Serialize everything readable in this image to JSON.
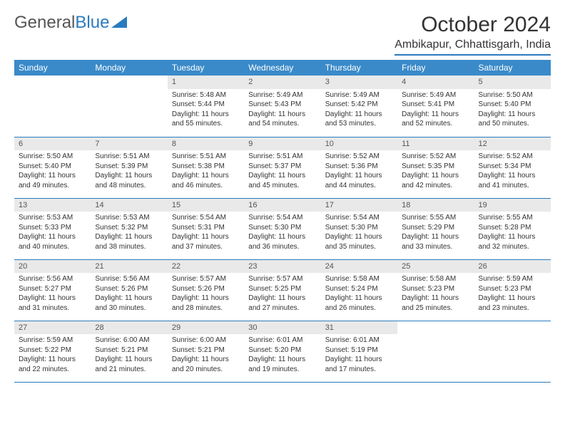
{
  "brand": {
    "part1": "General",
    "part2": "Blue"
  },
  "title": "October 2024",
  "location": "Ambikapur, Chhattisgarh, India",
  "colors": {
    "header_bg": "#3a8ac9",
    "header_text": "#ffffff",
    "daynum_bg": "#e9e9e9",
    "rule": "#2a7bbf",
    "text": "#333333"
  },
  "daysOfWeek": [
    "Sunday",
    "Monday",
    "Tuesday",
    "Wednesday",
    "Thursday",
    "Friday",
    "Saturday"
  ],
  "weeks": [
    [
      {
        "n": "",
        "sr": "",
        "ss": "",
        "dl": "",
        "empty": true
      },
      {
        "n": "",
        "sr": "",
        "ss": "",
        "dl": "",
        "empty": true
      },
      {
        "n": "1",
        "sr": "Sunrise: 5:48 AM",
        "ss": "Sunset: 5:44 PM",
        "dl": "Daylight: 11 hours and 55 minutes."
      },
      {
        "n": "2",
        "sr": "Sunrise: 5:49 AM",
        "ss": "Sunset: 5:43 PM",
        "dl": "Daylight: 11 hours and 54 minutes."
      },
      {
        "n": "3",
        "sr": "Sunrise: 5:49 AM",
        "ss": "Sunset: 5:42 PM",
        "dl": "Daylight: 11 hours and 53 minutes."
      },
      {
        "n": "4",
        "sr": "Sunrise: 5:49 AM",
        "ss": "Sunset: 5:41 PM",
        "dl": "Daylight: 11 hours and 52 minutes."
      },
      {
        "n": "5",
        "sr": "Sunrise: 5:50 AM",
        "ss": "Sunset: 5:40 PM",
        "dl": "Daylight: 11 hours and 50 minutes."
      }
    ],
    [
      {
        "n": "6",
        "sr": "Sunrise: 5:50 AM",
        "ss": "Sunset: 5:40 PM",
        "dl": "Daylight: 11 hours and 49 minutes."
      },
      {
        "n": "7",
        "sr": "Sunrise: 5:51 AM",
        "ss": "Sunset: 5:39 PM",
        "dl": "Daylight: 11 hours and 48 minutes."
      },
      {
        "n": "8",
        "sr": "Sunrise: 5:51 AM",
        "ss": "Sunset: 5:38 PM",
        "dl": "Daylight: 11 hours and 46 minutes."
      },
      {
        "n": "9",
        "sr": "Sunrise: 5:51 AM",
        "ss": "Sunset: 5:37 PM",
        "dl": "Daylight: 11 hours and 45 minutes."
      },
      {
        "n": "10",
        "sr": "Sunrise: 5:52 AM",
        "ss": "Sunset: 5:36 PM",
        "dl": "Daylight: 11 hours and 44 minutes."
      },
      {
        "n": "11",
        "sr": "Sunrise: 5:52 AM",
        "ss": "Sunset: 5:35 PM",
        "dl": "Daylight: 11 hours and 42 minutes."
      },
      {
        "n": "12",
        "sr": "Sunrise: 5:52 AM",
        "ss": "Sunset: 5:34 PM",
        "dl": "Daylight: 11 hours and 41 minutes."
      }
    ],
    [
      {
        "n": "13",
        "sr": "Sunrise: 5:53 AM",
        "ss": "Sunset: 5:33 PM",
        "dl": "Daylight: 11 hours and 40 minutes."
      },
      {
        "n": "14",
        "sr": "Sunrise: 5:53 AM",
        "ss": "Sunset: 5:32 PM",
        "dl": "Daylight: 11 hours and 38 minutes."
      },
      {
        "n": "15",
        "sr": "Sunrise: 5:54 AM",
        "ss": "Sunset: 5:31 PM",
        "dl": "Daylight: 11 hours and 37 minutes."
      },
      {
        "n": "16",
        "sr": "Sunrise: 5:54 AM",
        "ss": "Sunset: 5:30 PM",
        "dl": "Daylight: 11 hours and 36 minutes."
      },
      {
        "n": "17",
        "sr": "Sunrise: 5:54 AM",
        "ss": "Sunset: 5:30 PM",
        "dl": "Daylight: 11 hours and 35 minutes."
      },
      {
        "n": "18",
        "sr": "Sunrise: 5:55 AM",
        "ss": "Sunset: 5:29 PM",
        "dl": "Daylight: 11 hours and 33 minutes."
      },
      {
        "n": "19",
        "sr": "Sunrise: 5:55 AM",
        "ss": "Sunset: 5:28 PM",
        "dl": "Daylight: 11 hours and 32 minutes."
      }
    ],
    [
      {
        "n": "20",
        "sr": "Sunrise: 5:56 AM",
        "ss": "Sunset: 5:27 PM",
        "dl": "Daylight: 11 hours and 31 minutes."
      },
      {
        "n": "21",
        "sr": "Sunrise: 5:56 AM",
        "ss": "Sunset: 5:26 PM",
        "dl": "Daylight: 11 hours and 30 minutes."
      },
      {
        "n": "22",
        "sr": "Sunrise: 5:57 AM",
        "ss": "Sunset: 5:26 PM",
        "dl": "Daylight: 11 hours and 28 minutes."
      },
      {
        "n": "23",
        "sr": "Sunrise: 5:57 AM",
        "ss": "Sunset: 5:25 PM",
        "dl": "Daylight: 11 hours and 27 minutes."
      },
      {
        "n": "24",
        "sr": "Sunrise: 5:58 AM",
        "ss": "Sunset: 5:24 PM",
        "dl": "Daylight: 11 hours and 26 minutes."
      },
      {
        "n": "25",
        "sr": "Sunrise: 5:58 AM",
        "ss": "Sunset: 5:23 PM",
        "dl": "Daylight: 11 hours and 25 minutes."
      },
      {
        "n": "26",
        "sr": "Sunrise: 5:59 AM",
        "ss": "Sunset: 5:23 PM",
        "dl": "Daylight: 11 hours and 23 minutes."
      }
    ],
    [
      {
        "n": "27",
        "sr": "Sunrise: 5:59 AM",
        "ss": "Sunset: 5:22 PM",
        "dl": "Daylight: 11 hours and 22 minutes."
      },
      {
        "n": "28",
        "sr": "Sunrise: 6:00 AM",
        "ss": "Sunset: 5:21 PM",
        "dl": "Daylight: 11 hours and 21 minutes."
      },
      {
        "n": "29",
        "sr": "Sunrise: 6:00 AM",
        "ss": "Sunset: 5:21 PM",
        "dl": "Daylight: 11 hours and 20 minutes."
      },
      {
        "n": "30",
        "sr": "Sunrise: 6:01 AM",
        "ss": "Sunset: 5:20 PM",
        "dl": "Daylight: 11 hours and 19 minutes."
      },
      {
        "n": "31",
        "sr": "Sunrise: 6:01 AM",
        "ss": "Sunset: 5:19 PM",
        "dl": "Daylight: 11 hours and 17 minutes."
      },
      {
        "n": "",
        "sr": "",
        "ss": "",
        "dl": "",
        "empty": true
      },
      {
        "n": "",
        "sr": "",
        "ss": "",
        "dl": "",
        "empty": true
      }
    ]
  ]
}
